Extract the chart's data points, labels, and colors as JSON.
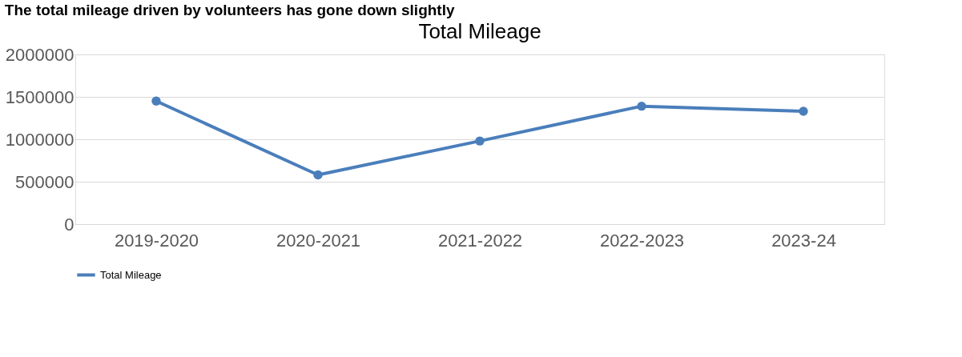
{
  "chart_data": {
    "type": "line",
    "title": "The total mileage driven by volunteers has gone down slightly",
    "subtitle": "Total Mileage",
    "categories": [
      "2019-2020",
      "2020-2021",
      "2021-2022",
      "2022-2023",
      "2023-24"
    ],
    "series": [
      {
        "name": "Total Mileage",
        "color": "#4a7ebb",
        "values": [
          1450000,
          580000,
          980000,
          1390000,
          1330000
        ]
      }
    ],
    "ylim": [
      0,
      2000000
    ],
    "yticks": [
      0,
      500000,
      1000000,
      1500000,
      2000000
    ],
    "grid": "y",
    "legend": "bottom",
    "marker": "circle",
    "line_style": "solid"
  }
}
